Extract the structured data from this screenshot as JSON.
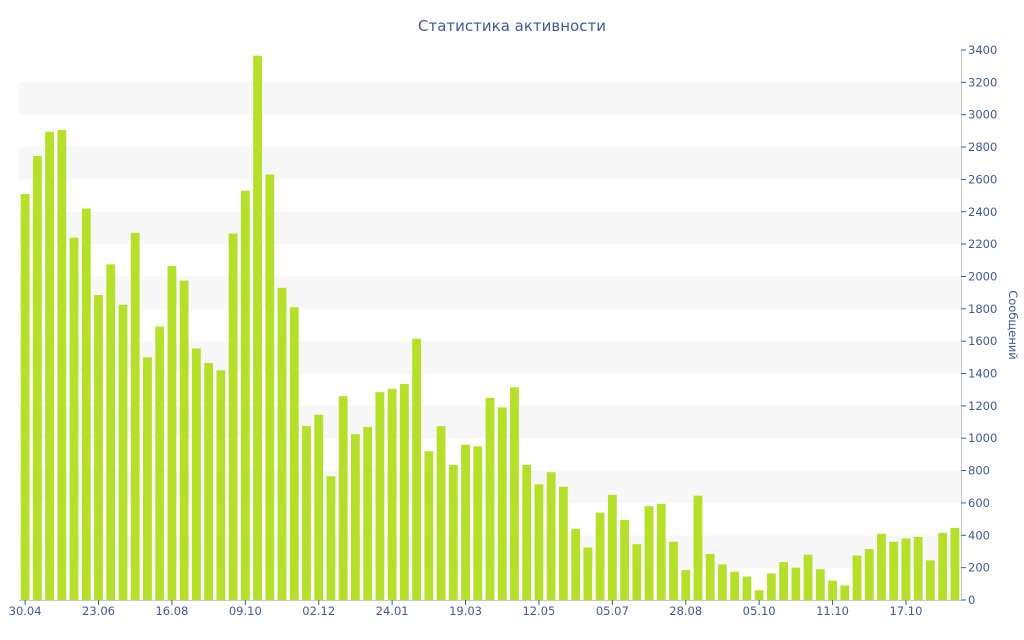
{
  "chart_data": {
    "type": "bar",
    "title": "Статистика активности",
    "xlabel": "",
    "ylabel": "Сообщений",
    "y_axis_side": "right",
    "ylim": [
      0,
      3400
    ],
    "y_ticks": [
      0,
      200,
      400,
      600,
      800,
      1000,
      1200,
      1400,
      1600,
      1800,
      2000,
      2200,
      2400,
      2600,
      2800,
      3000,
      3200,
      3400
    ],
    "x_tick_labels": [
      {
        "label": "30.04",
        "index": 0
      },
      {
        "label": "23.06",
        "index": 6
      },
      {
        "label": "16.08",
        "index": 12
      },
      {
        "label": "09.10",
        "index": 18
      },
      {
        "label": "02.12",
        "index": 24
      },
      {
        "label": "24.01",
        "index": 30
      },
      {
        "label": "19.03",
        "index": 36
      },
      {
        "label": "12.05",
        "index": 42
      },
      {
        "label": "05.07",
        "index": 48
      },
      {
        "label": "28.08",
        "index": 54
      },
      {
        "label": "05.10",
        "index": 60
      },
      {
        "label": "11.10",
        "index": 66
      },
      {
        "label": "17.10",
        "index": 72
      }
    ],
    "grid": "alternating horizontal bands",
    "legend": "none",
    "series": [
      {
        "color": "#b5e02a",
        "values": [
          2510,
          2745,
          2895,
          2905,
          2240,
          2420,
          1885,
          2075,
          1825,
          2270,
          1500,
          1690,
          2065,
          1975,
          1555,
          1465,
          1420,
          2265,
          2530,
          3365,
          2630,
          1930,
          1810,
          1075,
          1145,
          765,
          1260,
          1025,
          1070,
          1285,
          1305,
          1335,
          1615,
          920,
          1075,
          835,
          960,
          950,
          1250,
          1190,
          1315,
          835,
          715,
          790,
          700,
          440,
          325,
          540,
          650,
          495,
          345,
          580,
          595,
          360,
          185,
          645,
          285,
          220,
          175,
          145,
          60,
          165,
          235,
          200,
          280,
          190,
          120,
          90,
          275,
          315,
          410,
          360,
          380,
          390,
          245,
          415,
          445
        ]
      }
    ],
    "colors": {
      "bar": "#b5e02a",
      "text": "#3e5a99",
      "band": "#f7f7f7",
      "axis": "#c8c8c8",
      "tick": "#3e5a99"
    }
  }
}
